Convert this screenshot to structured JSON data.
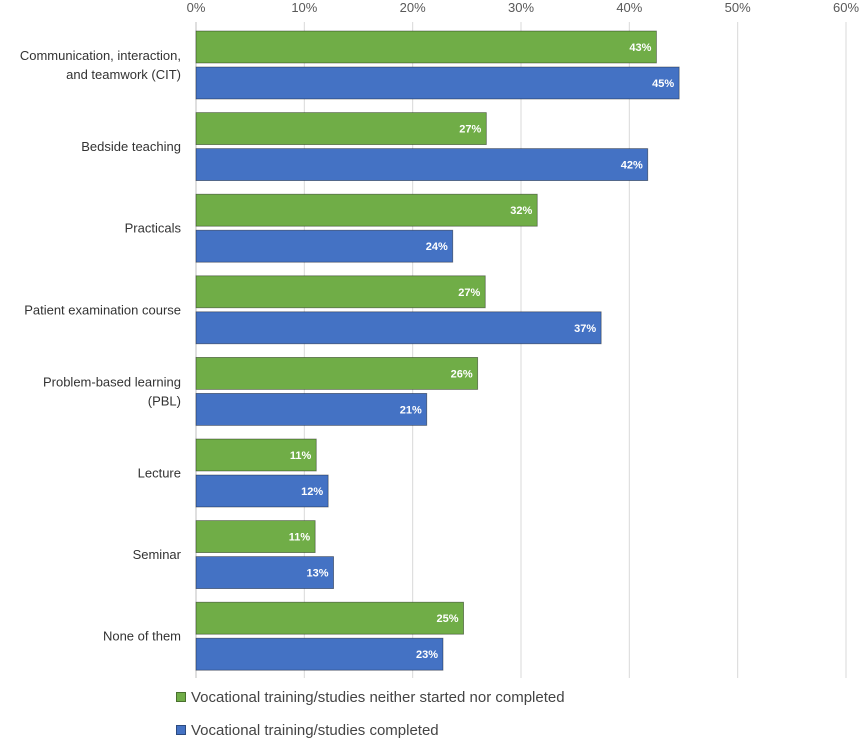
{
  "chart_data": {
    "type": "bar",
    "orientation": "horizontal",
    "categories": [
      [
        "Communication, interaction,",
        "and teamwork (CIT)"
      ],
      [
        "Bedside teaching"
      ],
      [
        "Practicals"
      ],
      [
        "Patient examination course"
      ],
      [
        "Problem-based learning",
        "(PBL)"
      ],
      [
        "Lecture"
      ],
      [
        "Seminar"
      ],
      [
        "None of them"
      ]
    ],
    "series": [
      {
        "name": "Vocational training/studies neither started nor completed",
        "color": "#70ad47",
        "values": [
          42.5,
          26.8,
          31.5,
          26.7,
          26.0,
          11.1,
          11.0,
          24.7
        ],
        "labels": [
          "43%",
          "27%",
          "32%",
          "27%",
          "26%",
          "11%",
          "11%",
          "25%"
        ]
      },
      {
        "name": "Vocational training/studies completed",
        "color": "#4472c4",
        "values": [
          44.6,
          41.7,
          23.7,
          37.4,
          21.3,
          12.2,
          12.7,
          22.8
        ],
        "labels": [
          "45%",
          "42%",
          "24%",
          "37%",
          "21%",
          "12%",
          "13%",
          "23%"
        ]
      }
    ],
    "x_ticks": [
      "0%",
      "10%",
      "20%",
      "30%",
      "40%",
      "50%",
      "60%"
    ],
    "xlim": [
      0,
      60
    ],
    "grid": true,
    "legend_position": "bottom-left"
  }
}
